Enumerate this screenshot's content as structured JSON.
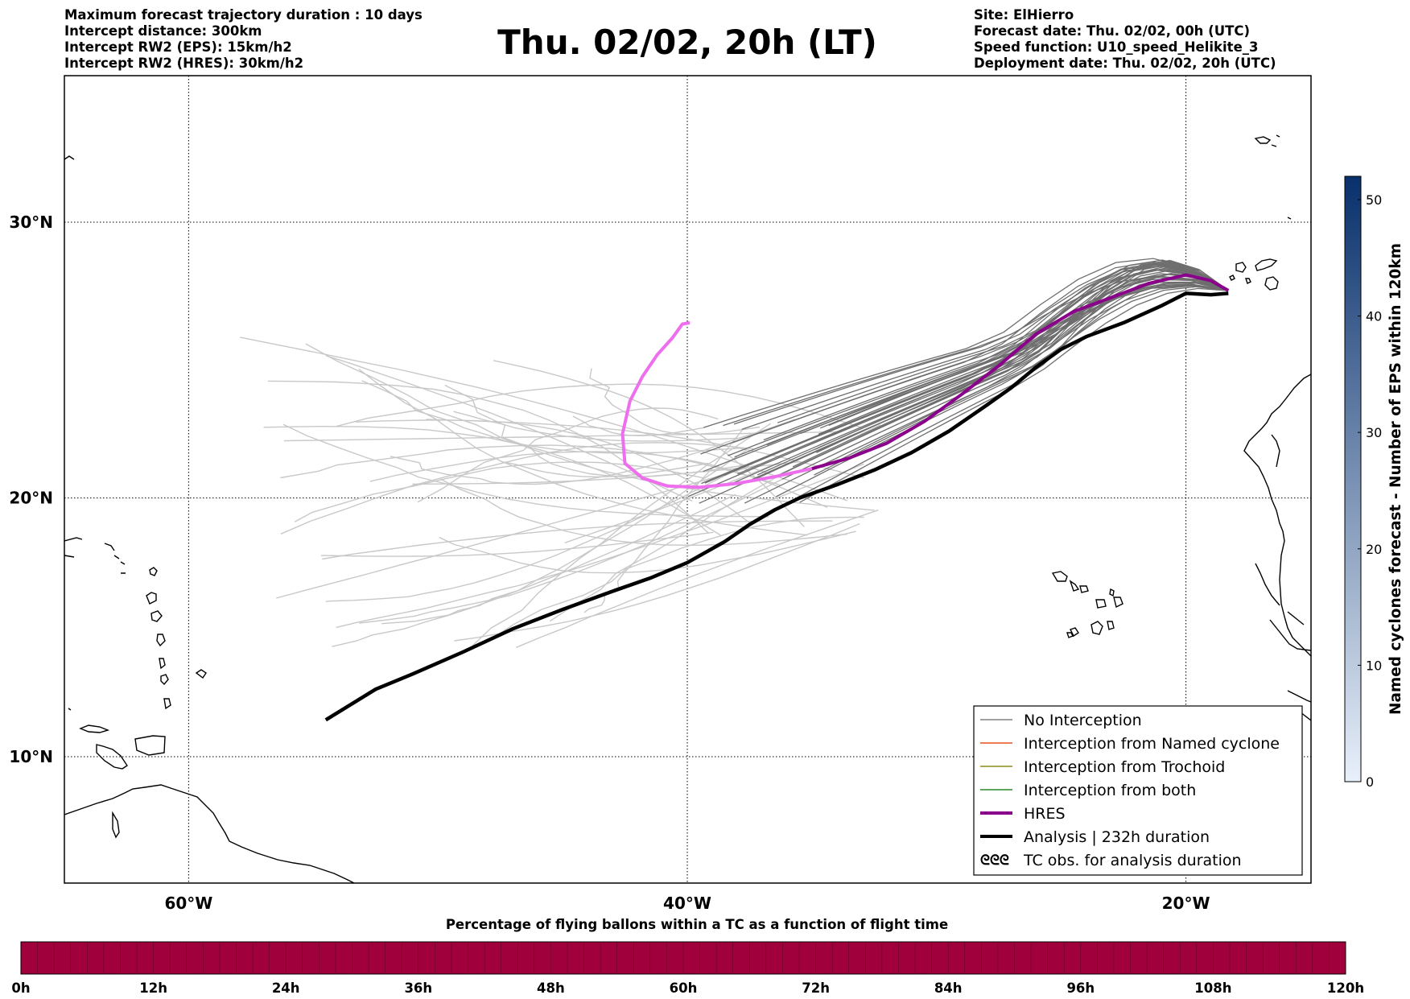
{
  "header": {
    "left_lines": [
      "Maximum forecast trajectory duration : 10 days",
      "Intercept distance: 300km",
      "Intercept RW2 (EPS):  15km/h2",
      "Intercept RW2 (HRES): 30km/h2"
    ],
    "title": "Thu. 02/02, 20h (LT)",
    "right_lines": [
      "Site: ElHierro",
      "Forecast date: Thu. 02/02, 00h (UTC)",
      "Speed function: U10_speed_Helikite_3",
      "Deployment date: Thu. 02/02, 20h (UTC)"
    ]
  },
  "map": {
    "lon_range": [
      -65,
      -15
    ],
    "lat_range": [
      5,
      34.5
    ],
    "lon_ticks": [
      {
        "value": -60,
        "label": "60°W"
      },
      {
        "value": -40,
        "label": "40°W"
      },
      {
        "value": -20,
        "label": "20°W"
      }
    ],
    "lat_ticks": [
      {
        "value": 30,
        "label": "30°N"
      },
      {
        "value": 20,
        "label": "20°N"
      },
      {
        "value": 10,
        "label": "10°N"
      }
    ],
    "grid": "dotted"
  },
  "trajectories": {
    "origin": [
      -18.3,
      27.6
    ],
    "hres": [
      [
        -18.3,
        27.6
      ],
      [
        -19,
        27.95
      ],
      [
        -20,
        28.15
      ],
      [
        -21.5,
        27.85
      ],
      [
        -23,
        27.35
      ],
      [
        -24.5,
        26.85
      ],
      [
        -26,
        26.05
      ],
      [
        -27.5,
        24.9
      ],
      [
        -29,
        23.85
      ],
      [
        -30.5,
        22.85
      ],
      [
        -32,
        22.05
      ],
      [
        -33.5,
        21.5
      ],
      [
        -35,
        21.1
      ],
      [
        -36.5,
        20.8
      ],
      [
        -38,
        20.55
      ],
      [
        -39.5,
        20.4
      ],
      [
        -40.8,
        20.45
      ],
      [
        -41.8,
        20.75
      ],
      [
        -42.5,
        21.3
      ],
      [
        -42.6,
        22.4
      ],
      [
        -42.3,
        23.6
      ],
      [
        -41.8,
        24.5
      ],
      [
        -41.2,
        25.3
      ],
      [
        -40.6,
        25.9
      ],
      [
        -40.2,
        26.4
      ],
      [
        -39.9,
        26.45
      ]
    ],
    "hres_color": "#8b008b",
    "hres_early_color": "#ee6fee",
    "analysis": [
      [
        -18.3,
        27.5
      ],
      [
        -19,
        27.45
      ],
      [
        -20,
        27.5
      ],
      [
        -21,
        27.05
      ],
      [
        -22.5,
        26.45
      ],
      [
        -24,
        25.95
      ],
      [
        -25,
        25.5
      ],
      [
        -26,
        24.85
      ],
      [
        -27,
        24.1
      ],
      [
        -28,
        23.45
      ],
      [
        -29.5,
        22.5
      ],
      [
        -31,
        21.7
      ],
      [
        -32.5,
        21.05
      ],
      [
        -34,
        20.5
      ],
      [
        -35.5,
        20.0
      ],
      [
        -36.5,
        19.55
      ],
      [
        -37.5,
        19.0
      ],
      [
        -38.5,
        18.35
      ],
      [
        -40,
        17.55
      ],
      [
        -41.5,
        16.95
      ],
      [
        -43,
        16.45
      ],
      [
        -45,
        15.75
      ],
      [
        -47,
        15.0
      ],
      [
        -49,
        14.1
      ],
      [
        -51,
        13.25
      ],
      [
        -52.5,
        12.65
      ],
      [
        -54.5,
        11.45
      ]
    ],
    "analysis_color": "#000000",
    "eps_dark_color": "#6e6e6e",
    "eps_light_color": "#c8c8c8"
  },
  "legend": {
    "entries": [
      {
        "label": "No Interception",
        "color": "#808080",
        "style": "thin"
      },
      {
        "label": "Interception from Named cyclone",
        "color": "#e8501a",
        "style": "thin"
      },
      {
        "label": "Interception from Trochoid",
        "color": "#8b8b1a",
        "style": "thin"
      },
      {
        "label": "Interception from both",
        "color": "#2a8a2a",
        "style": "thin"
      },
      {
        "label": "HRES",
        "color": "#8b008b",
        "style": "thick"
      },
      {
        "label": "Analysis | 232h duration",
        "color": "#000000",
        "style": "thick"
      },
      {
        "label": "TC obs. for analysis duration",
        "color": "#000000",
        "style": "symbol",
        "symbol": "ᘓᘓᘓ"
      }
    ]
  },
  "colorbar_right": {
    "label": "Named cyclones forecast - Number of EPS within 120km",
    "ticks": [
      "0",
      "10",
      "20",
      "30",
      "40",
      "50"
    ],
    "min": 0,
    "max": 52,
    "color_low": "#e8f0fa",
    "color_high": "#08306b"
  },
  "colorbar_bottom": {
    "title": "Percentage of flying ballons within a TC as a function of flight time",
    "ticks": [
      "0h",
      "12h",
      "24h",
      "36h",
      "48h",
      "60h",
      "72h",
      "84h",
      "96h",
      "108h",
      "120h"
    ],
    "fill_color": "#a0003c"
  }
}
